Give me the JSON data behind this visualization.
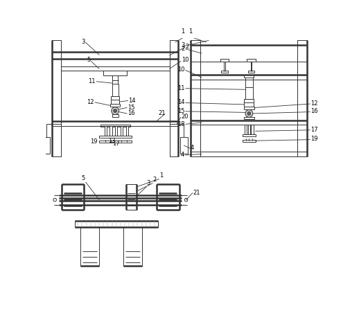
{
  "bg": "#ffffff",
  "lc": "#333333",
  "lw": 0.7,
  "tlw": 1.8,
  "fs": 6.0,
  "fw": 5.18,
  "fh": 4.55,
  "dpi": 100
}
